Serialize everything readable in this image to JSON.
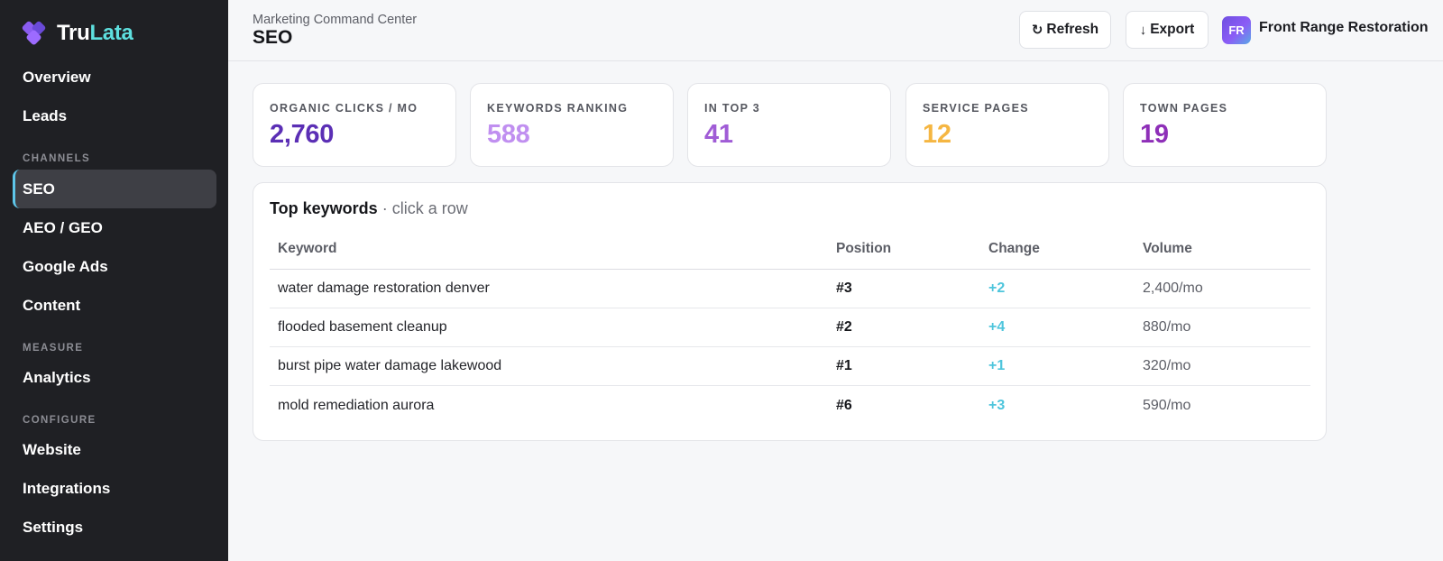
{
  "brand": {
    "part1": "Tru",
    "part2": "Lata"
  },
  "sidebar": {
    "items_top": [
      {
        "label": "Overview"
      },
      {
        "label": "Leads"
      }
    ],
    "sections": [
      {
        "label": "CHANNELS",
        "items": [
          {
            "label": "SEO",
            "active": true
          },
          {
            "label": "AEO / GEO"
          },
          {
            "label": "Google Ads"
          },
          {
            "label": "Content"
          }
        ]
      },
      {
        "label": "MEASURE",
        "items": [
          {
            "label": "Analytics"
          }
        ]
      },
      {
        "label": "CONFIGURE",
        "items": [
          {
            "label": "Website"
          },
          {
            "label": "Integrations"
          },
          {
            "label": "Settings"
          }
        ]
      }
    ]
  },
  "header": {
    "breadcrumb": "Marketing Command Center",
    "title": "SEO",
    "refresh_icon": "refresh-icon",
    "refresh_label": "Refresh",
    "export_icon": "arrow-down-icon",
    "export_label": "Export",
    "avatar_initials": "FR",
    "account_name": "Front Range Restoration"
  },
  "stats": [
    {
      "label": "ORGANIC CLICKS / MO",
      "value": "2,760",
      "color": "#5b2fb5"
    },
    {
      "label": "KEYWORDS RANKING",
      "value": "588",
      "color": "#c08ff0"
    },
    {
      "label": "IN TOP 3",
      "value": "41",
      "color": "#a05cd6"
    },
    {
      "label": "SERVICE PAGES",
      "value": "12",
      "color": "#f5b642"
    },
    {
      "label": "TOWN PAGES",
      "value": "19",
      "color": "#8e2fb8"
    }
  ],
  "keywords_table": {
    "title": "Top keywords",
    "hint": " · click a row",
    "columns": [
      "Keyword",
      "Position",
      "Change",
      "Volume"
    ],
    "rows": [
      {
        "keyword": "water damage restoration denver",
        "position": "#3",
        "change": "+2",
        "volume": "2,400/mo"
      },
      {
        "keyword": "flooded basement cleanup",
        "position": "#2",
        "change": "+4",
        "volume": "880/mo"
      },
      {
        "keyword": "burst pipe water damage lakewood",
        "position": "#1",
        "change": "+1",
        "volume": "320/mo"
      },
      {
        "keyword": "mold remediation aurora",
        "position": "#6",
        "change": "+3",
        "volume": "590/mo"
      }
    ]
  }
}
